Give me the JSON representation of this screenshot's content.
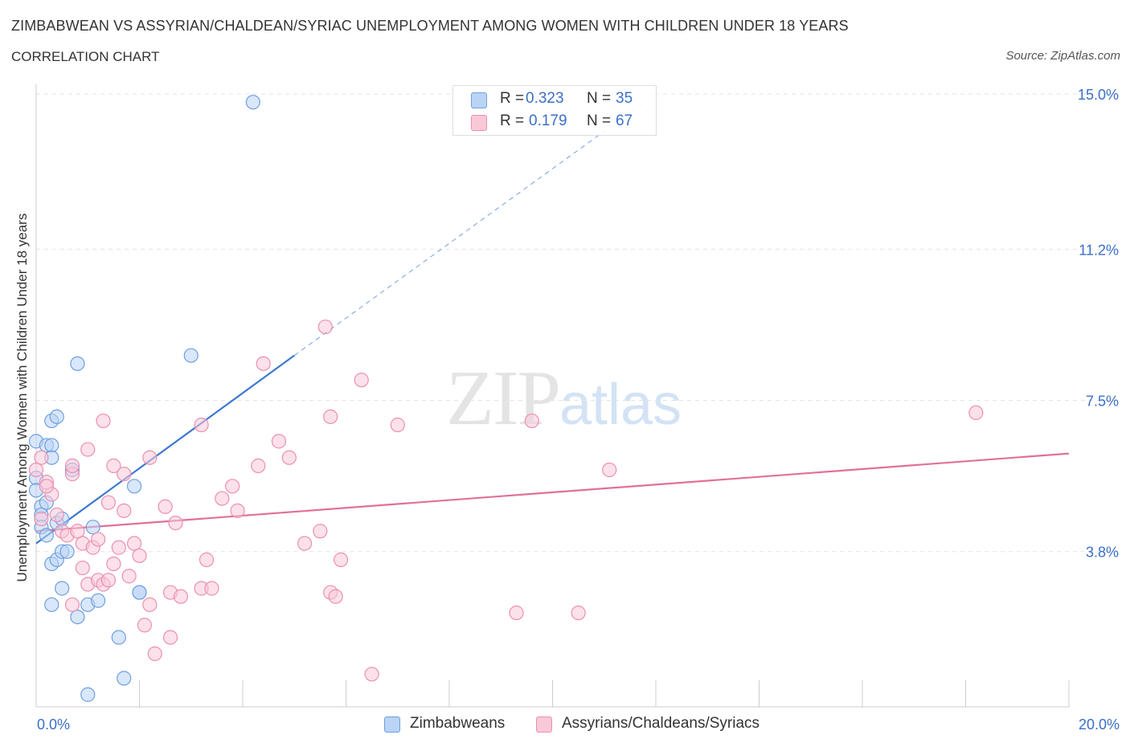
{
  "title": "ZIMBABWEAN VS ASSYRIAN/CHALDEAN/SYRIAC UNEMPLOYMENT AMONG WOMEN WITH CHILDREN UNDER 18 YEARS",
  "subtitle": "CORRELATION CHART",
  "source": "Source: ZipAtlas.com",
  "watermark": {
    "zip": "ZIP",
    "atlas": "atlas"
  },
  "colors": {
    "blue_fill": "#b9d4f5",
    "blue_stroke": "#6f9fe0",
    "blue_line": "#3b78d0",
    "pink_fill": "#f9c9d8",
    "pink_stroke": "#ec8fb0",
    "pink_line": "#e0709a",
    "tick_label": "#3b6fc6",
    "grid": "#e3e3e3"
  },
  "legend_top": [
    {
      "series": "zimbabweans",
      "r_label": "R =",
      "r_value": "0.323",
      "n_label": "N =",
      "n_value": "35"
    },
    {
      "series": "assyrians",
      "r_label": "R =",
      "r_value": "0.179",
      "n_label": "N =",
      "n_value": "67"
    }
  ],
  "chart_data": {
    "type": "scatter",
    "title": "ZIMBABWEAN VS ASSYRIAN/CHALDEAN/SYRIAC UNEMPLOYMENT AMONG WOMEN WITH CHILDREN UNDER 18 YEARS",
    "subtitle": "CORRELATION CHART",
    "xlabel": "",
    "ylabel": "Unemployment Among Women with Children Under 18 years",
    "xlim": [
      0,
      20
    ],
    "ylim": [
      0,
      15.0
    ],
    "x_ticks": [
      0,
      20
    ],
    "x_tick_labels": [
      "0.0%",
      "20.0%"
    ],
    "y_ticks": [
      3.8,
      7.5,
      11.2,
      15.0
    ],
    "y_tick_labels": [
      "3.8%",
      "7.5%",
      "11.2%",
      "15.0%"
    ],
    "grid": true,
    "legend_placement": "top-center",
    "series": [
      {
        "name": "Zimbabweans",
        "R": 0.323,
        "N": 35,
        "trend": {
          "x": [
            0,
            5.0
          ],
          "y": [
            4.0,
            8.6
          ],
          "extended_to": [
            12.0,
            15.0
          ]
        },
        "points": [
          [
            0.0,
            6.5
          ],
          [
            0.0,
            5.6
          ],
          [
            0.0,
            5.3
          ],
          [
            0.1,
            4.9
          ],
          [
            0.1,
            4.7
          ],
          [
            0.1,
            4.4
          ],
          [
            0.2,
            5.0
          ],
          [
            0.2,
            4.2
          ],
          [
            0.2,
            6.4
          ],
          [
            0.3,
            7.0
          ],
          [
            0.3,
            6.4
          ],
          [
            0.3,
            6.1
          ],
          [
            0.3,
            3.5
          ],
          [
            0.4,
            7.1
          ],
          [
            0.4,
            4.5
          ],
          [
            0.4,
            3.6
          ],
          [
            0.5,
            4.6
          ],
          [
            0.5,
            3.8
          ],
          [
            0.5,
            2.9
          ],
          [
            0.6,
            3.8
          ],
          [
            0.7,
            5.8
          ],
          [
            0.3,
            2.5
          ],
          [
            0.8,
            8.4
          ],
          [
            0.8,
            2.2
          ],
          [
            1.0,
            2.5
          ],
          [
            1.1,
            4.4
          ],
          [
            1.2,
            2.6
          ],
          [
            1.6,
            1.7
          ],
          [
            1.7,
            0.7
          ],
          [
            1.9,
            5.4
          ],
          [
            2.0,
            2.8
          ],
          [
            2.0,
            2.8
          ],
          [
            1.0,
            0.3
          ],
          [
            3.0,
            8.6
          ],
          [
            4.2,
            14.8
          ]
        ]
      },
      {
        "name": "Assyrians/Chaldeans/Syriacs",
        "R": 0.179,
        "N": 67,
        "trend": {
          "x": [
            0,
            20
          ],
          "y": [
            4.3,
            6.2
          ]
        },
        "points": [
          [
            0.0,
            5.8
          ],
          [
            0.1,
            6.1
          ],
          [
            0.2,
            5.5
          ],
          [
            0.3,
            5.2
          ],
          [
            0.4,
            4.7
          ],
          [
            0.5,
            4.3
          ],
          [
            0.6,
            4.2
          ],
          [
            0.7,
            5.7
          ],
          [
            0.7,
            2.5
          ],
          [
            0.7,
            5.9
          ],
          [
            0.8,
            4.3
          ],
          [
            0.9,
            3.4
          ],
          [
            0.9,
            4.0
          ],
          [
            1.0,
            6.3
          ],
          [
            1.0,
            3.0
          ],
          [
            1.1,
            3.9
          ],
          [
            1.2,
            4.1
          ],
          [
            1.2,
            3.1
          ],
          [
            1.3,
            3.0
          ],
          [
            1.3,
            7.0
          ],
          [
            1.4,
            3.1
          ],
          [
            1.4,
            5.0
          ],
          [
            1.5,
            5.9
          ],
          [
            1.5,
            3.5
          ],
          [
            1.6,
            3.9
          ],
          [
            1.7,
            4.8
          ],
          [
            1.7,
            5.7
          ],
          [
            1.8,
            3.2
          ],
          [
            1.9,
            4.0
          ],
          [
            2.0,
            3.7
          ],
          [
            2.1,
            2.0
          ],
          [
            2.2,
            6.1
          ],
          [
            2.2,
            2.5
          ],
          [
            2.3,
            1.3
          ],
          [
            2.5,
            4.9
          ],
          [
            2.6,
            2.8
          ],
          [
            2.6,
            1.7
          ],
          [
            2.7,
            4.5
          ],
          [
            2.8,
            2.7
          ],
          [
            3.2,
            6.9
          ],
          [
            3.2,
            2.9
          ],
          [
            3.3,
            3.6
          ],
          [
            3.4,
            2.9
          ],
          [
            3.6,
            5.1
          ],
          [
            3.8,
            5.4
          ],
          [
            3.9,
            4.8
          ],
          [
            4.3,
            5.9
          ],
          [
            4.4,
            8.4
          ],
          [
            4.7,
            6.5
          ],
          [
            4.9,
            6.1
          ],
          [
            5.2,
            4.0
          ],
          [
            5.5,
            4.3
          ],
          [
            5.6,
            9.3
          ],
          [
            5.7,
            2.8
          ],
          [
            5.7,
            7.1
          ],
          [
            5.8,
            2.7
          ],
          [
            5.9,
            3.6
          ],
          [
            6.3,
            8.0
          ],
          [
            6.5,
            0.8
          ],
          [
            7.0,
            6.9
          ],
          [
            9.3,
            2.3
          ],
          [
            9.6,
            7.0
          ],
          [
            10.5,
            2.3
          ],
          [
            11.1,
            5.8
          ],
          [
            18.2,
            7.2
          ],
          [
            0.1,
            4.6
          ],
          [
            0.2,
            5.4
          ]
        ]
      }
    ]
  },
  "legend_bottom": [
    {
      "series": "zimbabweans",
      "label": "Zimbabweans"
    },
    {
      "series": "assyrians",
      "label": "Assyrians/Chaldeans/Syriacs"
    }
  ]
}
